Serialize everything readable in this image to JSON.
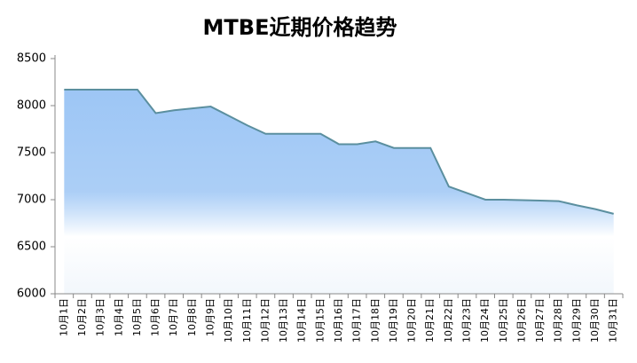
{
  "chart_data": {
    "type": "area",
    "title": "MTBE近期价格趋势",
    "categories": [
      "10月1日",
      "10月2日",
      "10月3日",
      "10月4日",
      "10月5日",
      "10月6日",
      "10月7日",
      "10月8日",
      "10月9日",
      "10月10日",
      "10月11日",
      "10月12日",
      "10月13日",
      "10月14日",
      "10月15日",
      "10月16日",
      "10月17日",
      "10月18日",
      "10月19日",
      "10月20日",
      "10月21日",
      "10月22日",
      "10月23日",
      "10月24日",
      "10月25日",
      "10月26日",
      "10月27日",
      "10月28日",
      "10月29日",
      "10月30日",
      "10月31日"
    ],
    "values": [
      8170,
      8170,
      8170,
      8170,
      8170,
      7920,
      7950,
      7970,
      7990,
      7890,
      7790,
      7700,
      7700,
      7700,
      7700,
      7590,
      7590,
      7620,
      7550,
      7550,
      7550,
      7140,
      7070,
      7000,
      7000,
      6995,
      6990,
      6985,
      6940,
      6900,
      6850
    ],
    "color": "#5b8f9f",
    "fill_color": "#9dc6f5",
    "ylim": [
      6000,
      8500
    ],
    "yticks": [
      6000,
      6500,
      7000,
      7500,
      8000,
      8500
    ],
    "grid": false
  }
}
